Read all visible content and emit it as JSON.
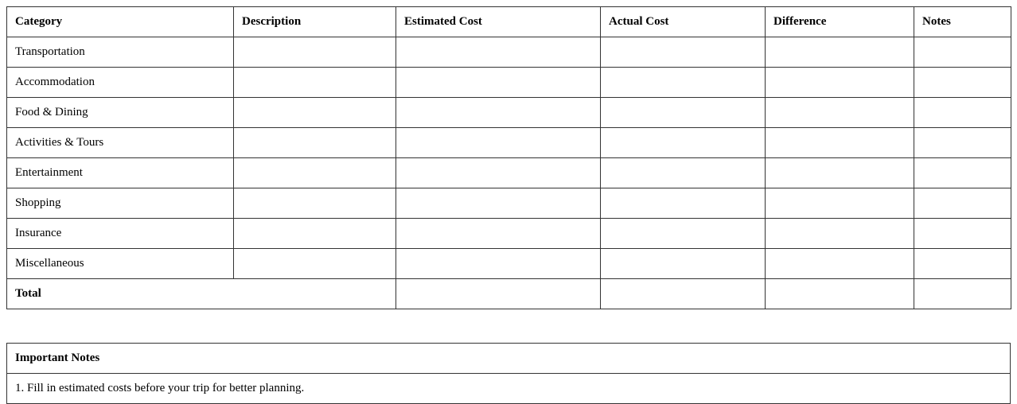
{
  "budget_table": {
    "headers": [
      "Category",
      "Description",
      "Estimated Cost",
      "Actual Cost",
      "Difference",
      "Notes"
    ],
    "rows": [
      {
        "category": "Transportation"
      },
      {
        "category": "Accommodation"
      },
      {
        "category": "Food & Dining"
      },
      {
        "category": "Activities & Tours"
      },
      {
        "category": "Entertainment"
      },
      {
        "category": "Shopping"
      },
      {
        "category": "Insurance"
      },
      {
        "category": "Miscellaneous"
      }
    ],
    "total_label": "Total"
  },
  "notes": {
    "title": "Important Notes",
    "items": [
      "1. Fill in estimated costs before your trip for better planning."
    ]
  }
}
